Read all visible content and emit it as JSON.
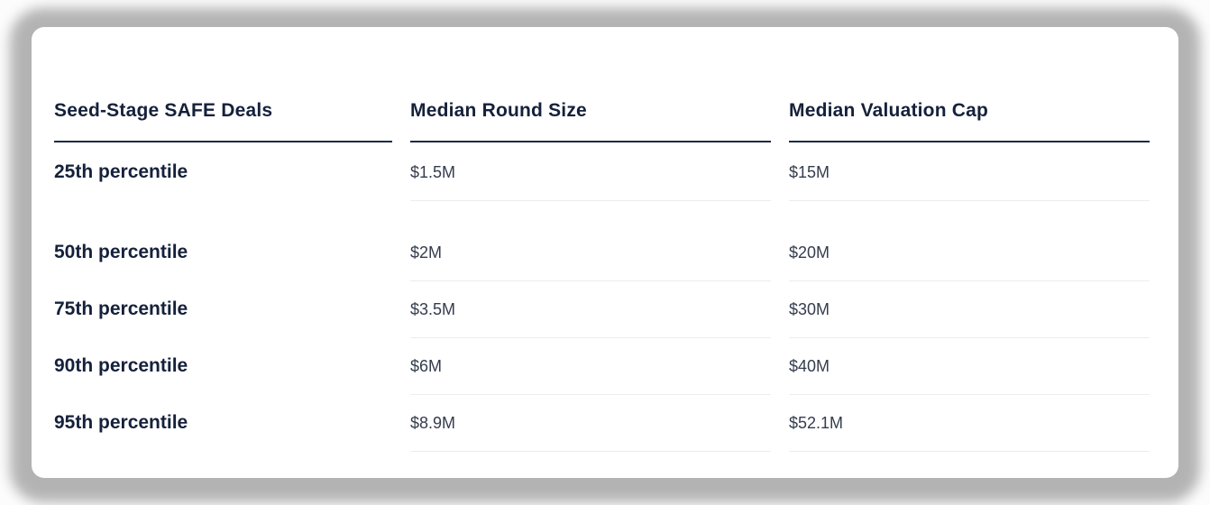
{
  "chart_data": {
    "type": "table",
    "title": "Seed-Stage SAFE Deals",
    "columns": [
      "Seed-Stage SAFE Deals",
      "Median Round Size",
      "Median Valuation Cap"
    ],
    "rows": [
      {
        "percentile": "25th percentile",
        "median_round_size": "$1.5M",
        "median_valuation_cap": "$15M"
      },
      {
        "percentile": "50th percentile",
        "median_round_size": "$2M",
        "median_valuation_cap": "$20M"
      },
      {
        "percentile": "75th percentile",
        "median_round_size": "$3.5M",
        "median_valuation_cap": "$30M"
      },
      {
        "percentile": "90th percentile",
        "median_round_size": "$6M",
        "median_valuation_cap": "$40M"
      },
      {
        "percentile": "95th percentile",
        "median_round_size": "$8.9M",
        "median_valuation_cap": "$52.1M"
      }
    ]
  },
  "colors": {
    "heading_text": "#15213b",
    "value_text": "#343c4d",
    "header_rule": "#1f2a44",
    "row_rule": "#ececef",
    "card_background": "#ffffff",
    "backdrop_shadow": "#b4b4b4"
  }
}
